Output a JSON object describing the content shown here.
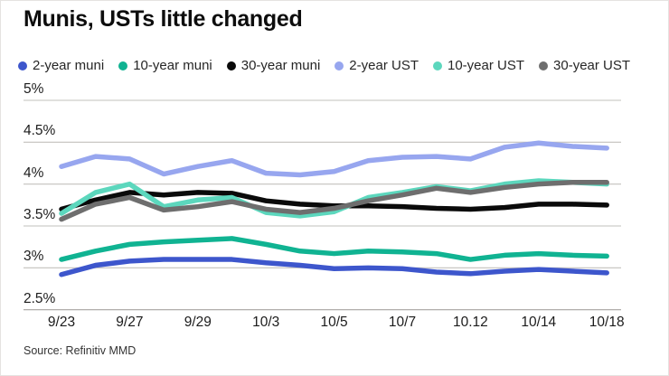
{
  "title": "Munis, USTs little changed",
  "source": "Source: Refinitiv MMD",
  "colors": {
    "background": "#ffffff",
    "gridline": "#c2c0bd",
    "axis_line": "#a6a3a0",
    "axis_text": "#1c1c1c",
    "title_text": "#0d0d0d",
    "source_text": "#333333"
  },
  "chart_data": {
    "type": "line",
    "title": "Munis, USTs little changed",
    "xlabel": "",
    "ylabel": "",
    "ylim": [
      2.5,
      5
    ],
    "grid": true,
    "legend_position": "top",
    "n_points": 17,
    "x_tick_every": 2,
    "x_tick_labels": [
      "9/23",
      "9/27",
      "9/29",
      "10/3",
      "10/5",
      "10/7",
      "10.12",
      "10/14",
      "10/18"
    ],
    "yticks": [
      {
        "label": "5%",
        "value": 5.0
      },
      {
        "label": "4.5%",
        "value": 4.5
      },
      {
        "label": "4%",
        "value": 4.0
      },
      {
        "label": "3.5%",
        "value": 3.5
      },
      {
        "label": "3%",
        "value": 3.0
      },
      {
        "label": "2.5%",
        "value": 2.5
      }
    ],
    "series": [
      {
        "name": "2-year muni",
        "color": "#3d56cc",
        "values": [
          2.92,
          3.03,
          3.08,
          3.1,
          3.1,
          3.1,
          3.06,
          3.03,
          2.99,
          3.0,
          2.99,
          2.95,
          2.93,
          2.96,
          2.98,
          2.96,
          2.94
        ]
      },
      {
        "name": "10-year muni",
        "color": "#10b392",
        "values": [
          3.1,
          3.2,
          3.28,
          3.31,
          3.33,
          3.35,
          3.28,
          3.2,
          3.17,
          3.2,
          3.19,
          3.17,
          3.1,
          3.15,
          3.17,
          3.15,
          3.14
        ]
      },
      {
        "name": "30-year muni",
        "color": "#0a0a0a",
        "values": [
          3.7,
          3.81,
          3.9,
          3.87,
          3.9,
          3.89,
          3.8,
          3.76,
          3.74,
          3.74,
          3.73,
          3.71,
          3.7,
          3.72,
          3.76,
          3.76,
          3.75
        ]
      },
      {
        "name": "2-year UST",
        "color": "#97a6ef",
        "values": [
          4.21,
          4.33,
          4.3,
          4.12,
          4.21,
          4.28,
          4.13,
          4.11,
          4.15,
          4.28,
          4.32,
          4.33,
          4.3,
          4.44,
          4.49,
          4.45,
          4.43
        ]
      },
      {
        "name": "10-year UST",
        "color": "#5cd7bd",
        "values": [
          3.65,
          3.9,
          4.0,
          3.73,
          3.81,
          3.84,
          3.66,
          3.62,
          3.67,
          3.84,
          3.9,
          3.97,
          3.92,
          4.0,
          4.04,
          4.02,
          4.0
        ]
      },
      {
        "name": "30-year UST",
        "color": "#6e6e6e",
        "values": [
          3.58,
          3.76,
          3.84,
          3.69,
          3.73,
          3.79,
          3.7,
          3.66,
          3.71,
          3.8,
          3.87,
          3.95,
          3.9,
          3.96,
          4.0,
          4.02,
          4.02
        ]
      }
    ]
  }
}
